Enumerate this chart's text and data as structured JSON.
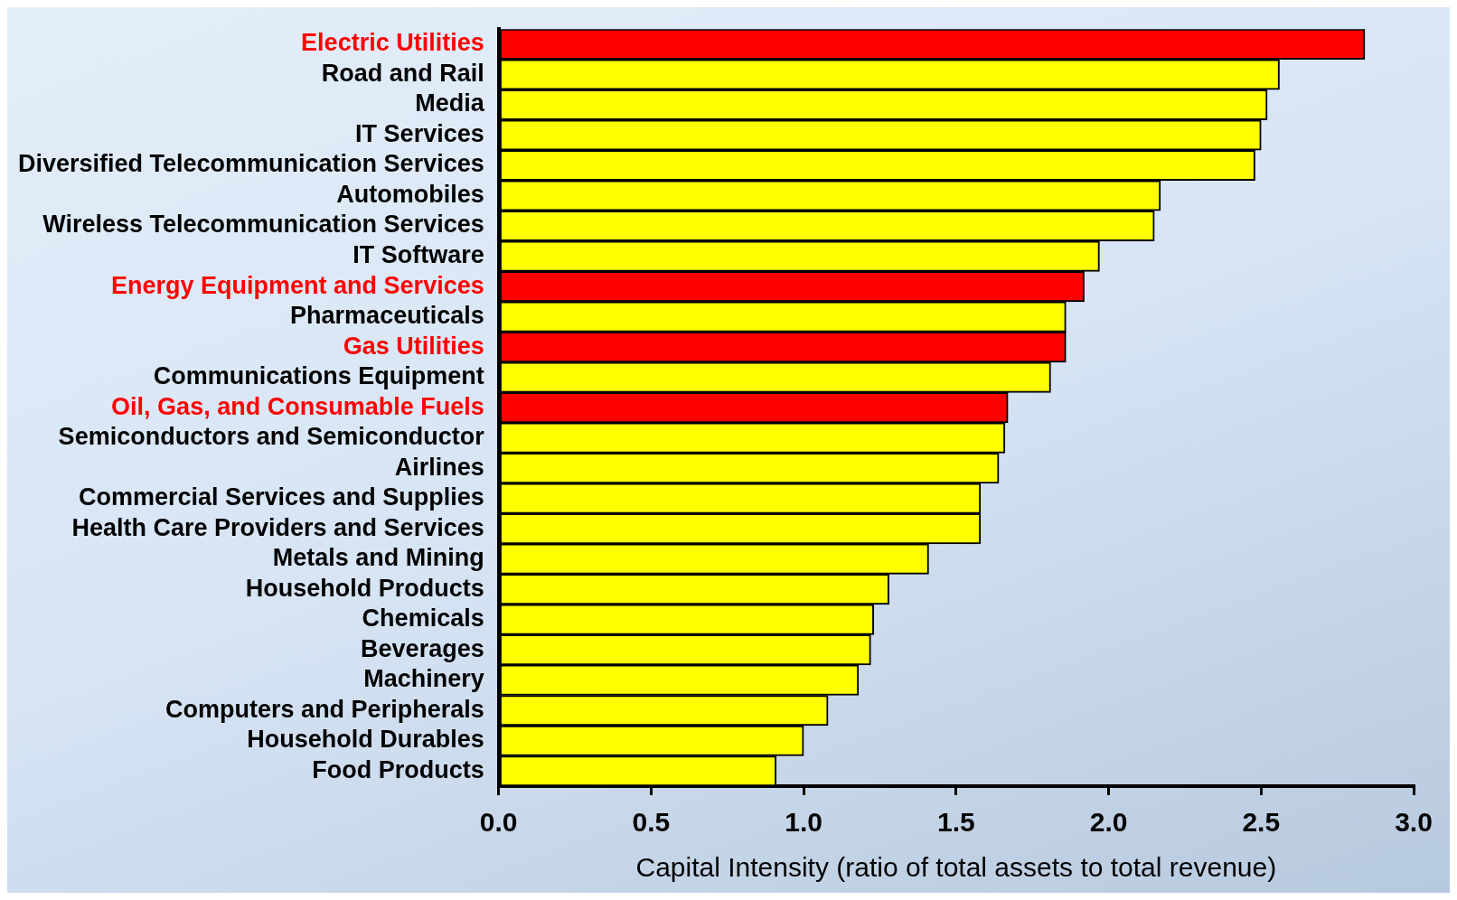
{
  "chart_data": {
    "type": "bar",
    "orientation": "horizontal",
    "xlabel": "Capital Intensity (ratio of total assets to total revenue)",
    "categories": [
      "Electric Utilities",
      "Road and Rail",
      "Media",
      "IT Services",
      "Diversified Telecommunication Services",
      "Automobiles",
      "Wireless Telecommunication Services",
      "IT Software",
      "Energy Equipment and Services",
      "Pharmaceuticals",
      "Gas Utilities",
      "Communications Equipment",
      "Oil, Gas, and Consumable Fuels",
      "Semiconductors and Semiconductor",
      "Airlines",
      "Commercial Services and Supplies",
      "Health Care Providers and Services",
      "Metals and Mining",
      "Household Products",
      "Chemicals",
      "Beverages",
      "Machinery",
      "Computers and Peripherals",
      "Household Durables",
      "Food Products"
    ],
    "values": [
      2.84,
      2.56,
      2.52,
      2.5,
      2.48,
      2.17,
      2.15,
      1.97,
      1.92,
      1.86,
      1.86,
      1.81,
      1.67,
      1.66,
      1.64,
      1.58,
      1.58,
      1.41,
      1.28,
      1.23,
      1.22,
      1.18,
      1.08,
      1.0,
      0.91
    ],
    "colors": [
      "#ff0000",
      "#ffff00",
      "#ffff00",
      "#ffff00",
      "#ffff00",
      "#ffff00",
      "#ffff00",
      "#ffff00",
      "#ff0000",
      "#ffff00",
      "#ff0000",
      "#ffff00",
      "#ff0000",
      "#ffff00",
      "#ffff00",
      "#ffff00",
      "#ffff00",
      "#ffff00",
      "#ffff00",
      "#ffff00",
      "#ffff00",
      "#ffff00",
      "#ffff00",
      "#ffff00",
      "#ffff00"
    ],
    "xlim": [
      0,
      3
    ],
    "xticks": [
      {
        "value": 0,
        "label": "0.0"
      },
      {
        "value": 0.5,
        "label": "0.5"
      },
      {
        "value": 1,
        "label": "1.0"
      },
      {
        "value": 1.5,
        "label": "1.5"
      },
      {
        "value": 2,
        "label": "2.0"
      },
      {
        "value": 2.5,
        "label": "2.5"
      },
      {
        "value": 3,
        "label": "3.0"
      }
    ],
    "legend": false
  }
}
